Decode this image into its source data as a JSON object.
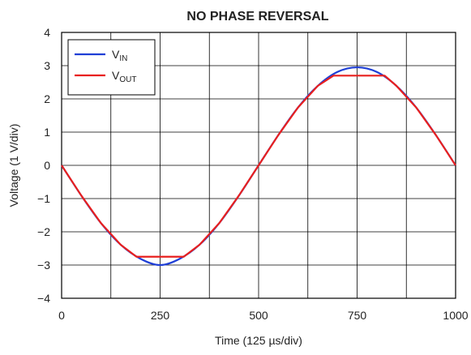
{
  "chart_data": {
    "type": "line",
    "title": "NO PHASE REVERSAL",
    "xlabel": "Time (125 µs/div)",
    "ylabel": "Voltage (1 V/div)",
    "xlim": [
      0,
      1000
    ],
    "ylim": [
      -4,
      4
    ],
    "x_ticks": [
      "0",
      "250",
      "500",
      "750",
      "1000"
    ],
    "y_ticks": [
      "4",
      "3",
      "2",
      "1",
      "0",
      "−1",
      "−2",
      "−3",
      "−4"
    ],
    "grid": true,
    "legend_position": "top-left",
    "series": [
      {
        "name_main": "V",
        "name_sub": "IN",
        "color": "#1f3fd6",
        "x": [
          0,
          50,
          100,
          150,
          200,
          250,
          300,
          350,
          400,
          450,
          500,
          550,
          600,
          650,
          700,
          750,
          800,
          850,
          900,
          950,
          1000
        ],
        "y": [
          0,
          -0.91,
          -1.74,
          -2.39,
          -2.81,
          -3.0,
          -2.81,
          -2.39,
          -1.74,
          -0.91,
          0,
          0.91,
          1.74,
          2.39,
          2.81,
          2.95,
          2.81,
          2.39,
          1.74,
          0.91,
          0
        ]
      },
      {
        "name_main": "V",
        "name_sub": "OUT",
        "color": "#e8201f",
        "x": [
          0,
          50,
          100,
          150,
          190,
          310,
          350,
          400,
          450,
          500,
          550,
          600,
          650,
          690,
          820,
          850,
          900,
          950,
          1000
        ],
        "y": [
          0,
          -0.91,
          -1.74,
          -2.39,
          -2.75,
          -2.75,
          -2.39,
          -1.74,
          -0.91,
          0,
          0.91,
          1.74,
          2.39,
          2.7,
          2.7,
          2.39,
          1.74,
          0.91,
          0
        ]
      }
    ]
  }
}
